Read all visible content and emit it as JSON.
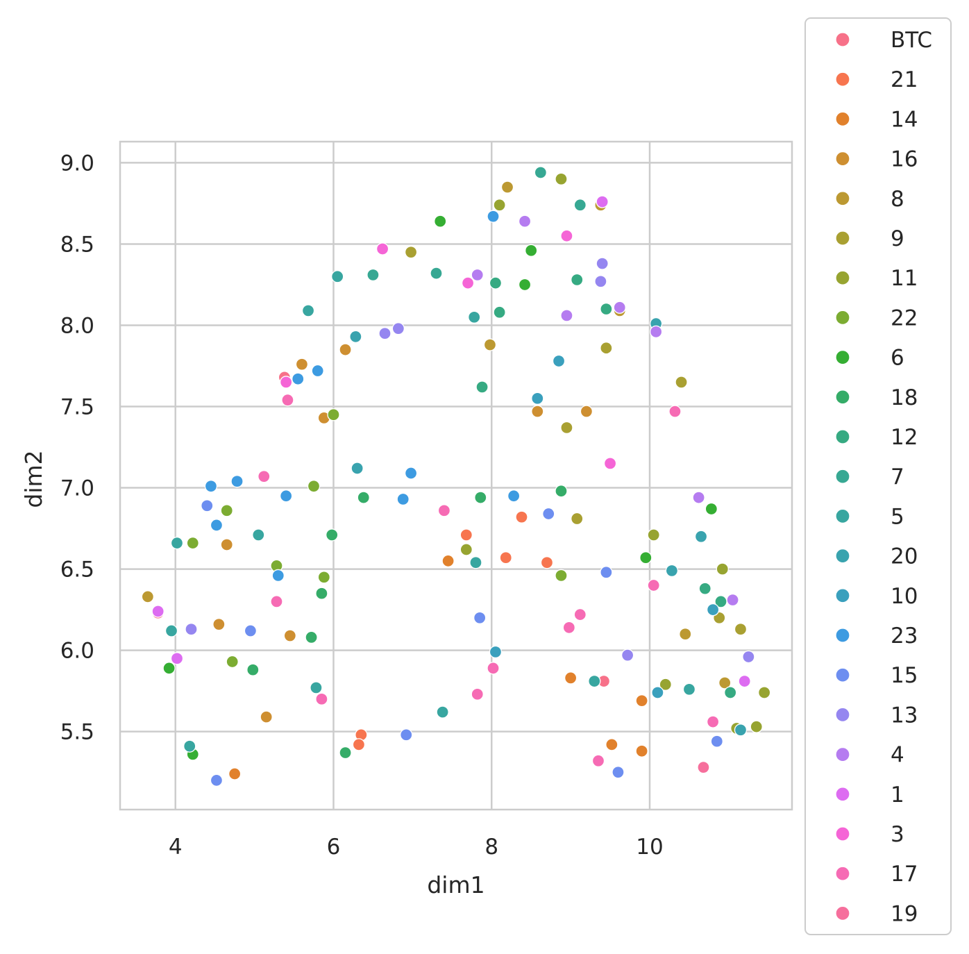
{
  "chart_data": {
    "type": "scatter",
    "xlabel": "dim1",
    "ylabel": "dim2",
    "xlim": [
      3.3,
      11.8
    ],
    "ylim": [
      5.02,
      9.13
    ],
    "xticks": [
      4,
      6,
      8,
      10
    ],
    "yticks": [
      5.5,
      6.0,
      6.5,
      7.0,
      7.5,
      8.0,
      8.5,
      9.0
    ],
    "xtick_labels": [
      "4",
      "6",
      "8",
      "10"
    ],
    "ytick_labels": [
      "5.5",
      "6.0",
      "6.5",
      "7.0",
      "7.5",
      "8.0",
      "8.5",
      "9.0"
    ],
    "grid": true,
    "legend_position": "outside-right",
    "series": [
      {
        "name": "BTC",
        "color": "#f77189",
        "points": [
          [
            5.38,
            7.68
          ],
          [
            3.78,
            6.23
          ],
          [
            9.42,
            5.81
          ]
        ]
      },
      {
        "name": "21",
        "color": "#f7754f",
        "points": [
          [
            6.35,
            5.48
          ],
          [
            7.68,
            6.71
          ],
          [
            8.18,
            6.57
          ],
          [
            8.38,
            6.82
          ],
          [
            6.32,
            5.42
          ],
          [
            8.7,
            6.54
          ]
        ]
      },
      {
        "name": "14",
        "color": "#e1812c",
        "points": [
          [
            4.75,
            5.24
          ],
          [
            7.45,
            6.55
          ],
          [
            9.0,
            5.83
          ],
          [
            9.52,
            5.42
          ],
          [
            9.9,
            5.38
          ],
          [
            9.9,
            5.69
          ]
        ]
      },
      {
        "name": "16",
        "color": "#ce8f31",
        "points": [
          [
            5.6,
            7.76
          ],
          [
            6.15,
            7.85
          ],
          [
            4.55,
            6.16
          ],
          [
            4.65,
            6.65
          ],
          [
            5.45,
            6.09
          ],
          [
            5.88,
            7.43
          ],
          [
            5.15,
            5.59
          ],
          [
            9.2,
            7.47
          ],
          [
            8.58,
            7.47
          ]
        ]
      },
      {
        "name": "8",
        "color": "#bc9932",
        "points": [
          [
            3.65,
            6.33
          ],
          [
            8.2,
            8.85
          ],
          [
            7.98,
            7.88
          ],
          [
            9.38,
            8.74
          ],
          [
            9.62,
            8.09
          ],
          [
            10.45,
            6.1
          ],
          [
            10.95,
            5.8
          ]
        ]
      },
      {
        "name": "9",
        "color": "#a9a032",
        "points": [
          [
            6.98,
            8.45
          ],
          [
            8.95,
            7.37
          ],
          [
            9.08,
            6.81
          ],
          [
            9.45,
            7.86
          ],
          [
            10.4,
            7.65
          ],
          [
            10.88,
            6.2
          ],
          [
            11.15,
            6.13
          ]
        ]
      },
      {
        "name": "11",
        "color": "#97a431",
        "points": [
          [
            8.1,
            8.74
          ],
          [
            8.88,
            8.9
          ],
          [
            7.68,
            6.62
          ],
          [
            10.05,
            6.71
          ],
          [
            10.92,
            6.5
          ],
          [
            10.2,
            5.79
          ],
          [
            11.1,
            5.52
          ],
          [
            11.35,
            5.53
          ],
          [
            11.45,
            5.74
          ]
        ]
      },
      {
        "name": "22",
        "color": "#7cac32",
        "points": [
          [
            4.22,
            6.66
          ],
          [
            4.65,
            6.86
          ],
          [
            5.28,
            6.52
          ],
          [
            5.88,
            6.45
          ],
          [
            5.75,
            7.01
          ],
          [
            6.0,
            7.45
          ],
          [
            4.72,
            5.93
          ],
          [
            8.88,
            6.46
          ]
        ]
      },
      {
        "name": "6",
        "color": "#35ae33",
        "points": [
          [
            7.35,
            8.64
          ],
          [
            8.5,
            8.46
          ],
          [
            8.42,
            8.25
          ],
          [
            9.95,
            6.57
          ],
          [
            10.78,
            6.87
          ],
          [
            3.92,
            5.89
          ],
          [
            4.22,
            5.36
          ]
        ]
      },
      {
        "name": "18",
        "color": "#35ac68",
        "points": [
          [
            5.98,
            6.71
          ],
          [
            6.38,
            6.94
          ],
          [
            7.86,
            6.94
          ],
          [
            8.88,
            6.98
          ],
          [
            5.85,
            6.35
          ],
          [
            5.72,
            6.08
          ],
          [
            4.98,
            5.88
          ],
          [
            6.15,
            5.37
          ]
        ]
      },
      {
        "name": "12",
        "color": "#36aa82",
        "points": [
          [
            8.05,
            8.26
          ],
          [
            8.1,
            8.08
          ],
          [
            7.88,
            7.62
          ],
          [
            9.08,
            8.28
          ],
          [
            9.45,
            8.1
          ],
          [
            10.7,
            6.38
          ],
          [
            10.9,
            6.3
          ],
          [
            11.02,
            5.74
          ]
        ]
      },
      {
        "name": "7",
        "color": "#37a893",
        "points": [
          [
            6.5,
            8.31
          ],
          [
            7.3,
            8.32
          ],
          [
            8.62,
            8.94
          ],
          [
            9.12,
            8.74
          ]
        ]
      },
      {
        "name": "5",
        "color": "#38a6a0",
        "points": [
          [
            6.05,
            8.3
          ],
          [
            5.68,
            8.09
          ],
          [
            7.78,
            8.05
          ],
          [
            7.8,
            6.54
          ],
          [
            4.02,
            6.66
          ],
          [
            5.05,
            6.71
          ],
          [
            3.95,
            6.12
          ],
          [
            5.78,
            5.77
          ],
          [
            7.38,
            5.62
          ],
          [
            9.3,
            5.81
          ],
          [
            10.5,
            5.76
          ],
          [
            4.18,
            5.41
          ]
        ]
      },
      {
        "name": "20",
        "color": "#39a3ae",
        "points": [
          [
            6.28,
            7.93
          ],
          [
            6.3,
            7.12
          ],
          [
            10.08,
            8.01
          ],
          [
            10.28,
            6.49
          ],
          [
            10.65,
            6.7
          ],
          [
            11.15,
            5.51
          ]
        ]
      },
      {
        "name": "10",
        "color": "#3aa0bd",
        "points": [
          [
            8.58,
            7.55
          ],
          [
            8.85,
            7.78
          ],
          [
            8.05,
            5.99
          ],
          [
            10.8,
            6.25
          ],
          [
            10.1,
            5.74
          ]
        ]
      },
      {
        "name": "23",
        "color": "#3d9be1",
        "points": [
          [
            5.55,
            7.67
          ],
          [
            5.8,
            7.72
          ],
          [
            4.45,
            7.01
          ],
          [
            4.78,
            7.04
          ],
          [
            5.4,
            6.95
          ],
          [
            4.52,
            6.77
          ],
          [
            5.3,
            6.46
          ],
          [
            6.98,
            7.09
          ],
          [
            6.88,
            6.93
          ],
          [
            8.02,
            8.67
          ],
          [
            8.28,
            6.95
          ]
        ]
      },
      {
        "name": "15",
        "color": "#6d8ef0",
        "points": [
          [
            4.4,
            6.89
          ],
          [
            4.95,
            6.12
          ],
          [
            4.52,
            5.2
          ],
          [
            6.92,
            5.48
          ],
          [
            7.85,
            6.2
          ],
          [
            8.72,
            6.84
          ],
          [
            9.45,
            6.48
          ],
          [
            9.6,
            5.25
          ],
          [
            10.85,
            5.44
          ]
        ]
      },
      {
        "name": "13",
        "color": "#9586f0",
        "points": [
          [
            6.82,
            7.98
          ],
          [
            6.65,
            7.95
          ],
          [
            9.38,
            8.27
          ],
          [
            9.4,
            8.38
          ],
          [
            9.72,
            5.97
          ],
          [
            11.25,
            5.96
          ],
          [
            4.2,
            6.13
          ]
        ]
      },
      {
        "name": "4",
        "color": "#b57cf0",
        "points": [
          [
            7.82,
            8.31
          ],
          [
            8.42,
            8.64
          ],
          [
            8.95,
            8.06
          ],
          [
            9.62,
            8.11
          ],
          [
            10.08,
            7.96
          ],
          [
            10.62,
            6.94
          ],
          [
            11.05,
            6.31
          ]
        ]
      },
      {
        "name": "1",
        "color": "#dd6cf1",
        "points": [
          [
            3.78,
            6.24
          ],
          [
            4.02,
            5.95
          ],
          [
            9.4,
            8.76
          ],
          [
            11.2,
            5.81
          ]
        ]
      },
      {
        "name": "3",
        "color": "#f565d6",
        "points": [
          [
            6.62,
            8.47
          ],
          [
            7.7,
            8.26
          ],
          [
            8.95,
            8.55
          ],
          [
            9.5,
            7.15
          ],
          [
            5.4,
            7.65
          ]
        ]
      },
      {
        "name": "17",
        "color": "#f66bb4",
        "points": [
          [
            5.42,
            7.54
          ],
          [
            5.12,
            7.07
          ],
          [
            7.4,
            6.86
          ],
          [
            10.32,
            7.47
          ],
          [
            10.05,
            6.4
          ],
          [
            9.12,
            6.22
          ],
          [
            8.98,
            6.14
          ],
          [
            5.28,
            6.3
          ],
          [
            5.85,
            5.7
          ],
          [
            8.02,
            5.89
          ],
          [
            7.82,
            5.73
          ],
          [
            9.35,
            5.32
          ],
          [
            10.8,
            5.56
          ]
        ]
      },
      {
        "name": "19",
        "color": "#f66f9c",
        "points": [
          [
            10.68,
            5.28
          ]
        ]
      }
    ]
  }
}
